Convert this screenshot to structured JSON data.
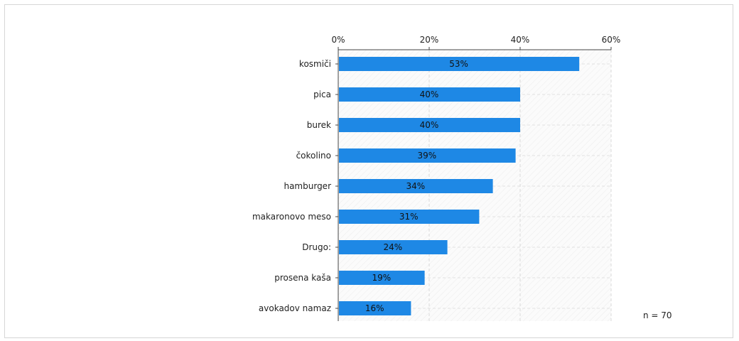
{
  "chart_data": {
    "type": "bar",
    "orientation": "horizontal",
    "categories": [
      "kosmiči",
      "pica",
      "burek",
      "čokolino",
      "hamburger",
      "makaronovo meso",
      "Drugo:",
      "prosena kaša",
      "avokadov namaz"
    ],
    "values": [
      53,
      40,
      40,
      39,
      34,
      31,
      24,
      19,
      16
    ],
    "value_labels": [
      "53%",
      "40%",
      "40%",
      "39%",
      "34%",
      "31%",
      "24%",
      "19%",
      "16%"
    ],
    "xlim": [
      0,
      60
    ],
    "xticks": [
      0,
      20,
      40,
      60
    ],
    "xtick_labels": [
      "0%",
      "20%",
      "40%",
      "60%"
    ],
    "x_axis_position": "top",
    "grid": true,
    "bar_color": "#1e88e5",
    "note": "n = 70"
  }
}
